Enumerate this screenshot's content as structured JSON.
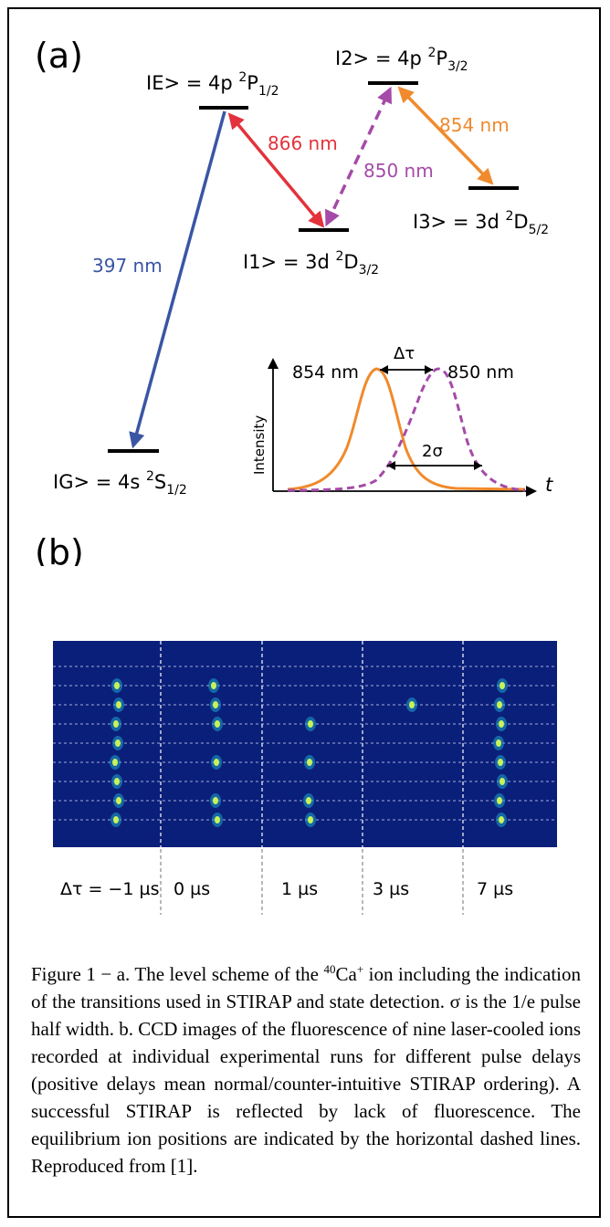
{
  "panel_a": {
    "label": "(a)",
    "levels": {
      "E": {
        "ket": "IE> = 4p ",
        "sup": "2",
        "term": "P",
        "sub": "1/2"
      },
      "L2": {
        "ket": "I2> =  4p ",
        "sup": "2",
        "term": "P",
        "sub": "3/2"
      },
      "L1": {
        "ket": "I1> = 3d ",
        "sup": "2",
        "term": "D",
        "sub": "3/2"
      },
      "L3": {
        "ket": "I3> = 3d ",
        "sup": "2",
        "term": "D",
        "sub": "5/2"
      },
      "G": {
        "ket": "IG> = 4s ",
        "sup": "2",
        "term": "S",
        "sub": "1/2"
      }
    },
    "transitions": {
      "t397": "397 nm",
      "t866": "866 nm",
      "t850": "850 nm",
      "t854": "854 nm"
    },
    "colors": {
      "blue": "#3a55a4",
      "red": "#e3323b",
      "magenta": "#a54aa8",
      "orange": "#f08a2c"
    },
    "inset": {
      "pulse1": "854 nm",
      "pulse2": "850 nm",
      "delay": "Δτ",
      "width": "2σ",
      "ylabel": "Intensity",
      "xlabel": "t"
    }
  },
  "panel_b": {
    "label": "(b)",
    "columns": [
      "Δτ = −1 µs",
      "0 µs",
      "1 µs",
      "3 µs",
      "7 µs"
    ],
    "ion_rows": 9,
    "bright_ions": [
      [
        1,
        2,
        3,
        4,
        5,
        6,
        7,
        8
      ],
      [
        1,
        2,
        3,
        5,
        7,
        8
      ],
      [
        3,
        5,
        7,
        8
      ],
      [
        2
      ],
      [
        1,
        2,
        3,
        4,
        5,
        6,
        7,
        8
      ]
    ],
    "background_color": "#0a1f7a"
  },
  "caption": {
    "prefix": "Figure 1 − a. The level scheme of the ",
    "ion_mass": "40",
    "ion_symbol": "Ca",
    "ion_charge": "+",
    "rest": " ion including the indication of the transitions used in STIRAP and state detection. σ is the 1/e pulse half width. b. CCD images of the fluorescence of nine laser-cooled ions recorded at individual experimental runs for different pulse delays (positive delays mean normal/counter-intuitive STIRAP ordering). A successful STIRAP is reflected by lack of fluorescence. The equilibrium ion positions are indicated by the horizontal dashed lines. Reproduced from [1]."
  }
}
